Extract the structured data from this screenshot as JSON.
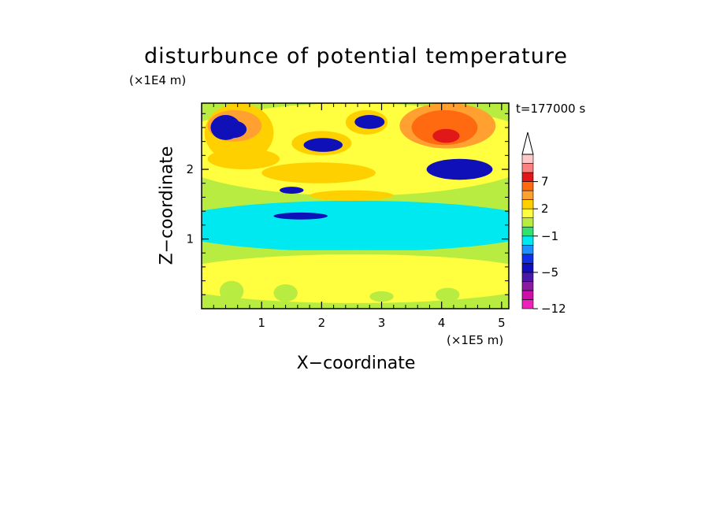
{
  "chart_data": {
    "type": "heatmap",
    "title": "disturbunce of potential temperature",
    "xlabel": "X−coordinate",
    "ylabel": "Z−coordinate",
    "x_unit": "(×1E5 m)",
    "y_unit": "(×1E4 m)",
    "annotation": "t=177000 s",
    "xlim": [
      0,
      5.12
    ],
    "ylim": [
      0,
      2.95
    ],
    "x_ticks": [
      1,
      2,
      3,
      4,
      5
    ],
    "x_tick_labels": [
      "1",
      "2",
      "3",
      "4",
      "5"
    ],
    "y_ticks": [
      1,
      2
    ],
    "y_tick_labels": [
      "1",
      "2"
    ],
    "colorbar": {
      "levels": [
        -12,
        -10,
        -8,
        -6,
        -5,
        -4,
        -3,
        -2,
        -1,
        0,
        1,
        2,
        3,
        5,
        7,
        8,
        10
      ],
      "tick_values": [
        -12,
        -5,
        -1,
        2,
        7
      ],
      "tick_labels": [
        "−12",
        "−5",
        "−1",
        "2",
        "7"
      ],
      "colors": [
        "#ee22bb",
        "#cc10a8",
        "#8a1aa0",
        "#4a18a8",
        "#1010b8",
        "#1030e8",
        "#1e90ff",
        "#00e8f0",
        "#34e070",
        "#b8ec40",
        "#ffff40",
        "#ffd000",
        "#ffa030",
        "#ff6a10",
        "#e01818",
        "#ff8080",
        "#ffc8c8"
      ],
      "extend": "max"
    },
    "regions": [
      {
        "x": [
          0,
          5.12
        ],
        "y": [
          0,
          2.95
        ],
        "value": 0.5
      },
      {
        "x": [
          0,
          5.12
        ],
        "y": [
          0.08,
          0.78
        ],
        "value": 1.5
      },
      {
        "x": [
          0,
          5.12
        ],
        "y": [
          1.62,
          2.95
        ],
        "value": 1.5
      },
      {
        "x": [
          0,
          5.12
        ],
        "y": [
          0.82,
          1.55
        ],
        "value": -1.5
      },
      {
        "x": [
          0,
          5.12
        ],
        "y": [
          0.98,
          1.4
        ],
        "value": -1.5
      },
      {
        "x": [
          0,
          5.12
        ],
        "y": [
          0.8,
          0.84
        ],
        "value": 0.5
      },
      {
        "x": [
          0.05,
          1.2
        ],
        "y": [
          2.1,
          2.95
        ],
        "value": 2.5
      },
      {
        "x": [
          0.1,
          1.0
        ],
        "y": [
          2.4,
          2.85
        ],
        "value": 4
      },
      {
        "x": [
          0.15,
          0.65
        ],
        "y": [
          2.42,
          2.78
        ],
        "value": -4.5
      },
      {
        "x": [
          0.3,
          0.75
        ],
        "y": [
          2.45,
          2.7
        ],
        "value": -4.5
      },
      {
        "x": [
          0.1,
          1.3
        ],
        "y": [
          2.0,
          2.3
        ],
        "value": 2.5
      },
      {
        "x": [
          1.5,
          2.5
        ],
        "y": [
          2.2,
          2.55
        ],
        "value": 2.5
      },
      {
        "x": [
          1.7,
          2.35
        ],
        "y": [
          2.25,
          2.45
        ],
        "value": -4.5
      },
      {
        "x": [
          2.4,
          3.1
        ],
        "y": [
          2.5,
          2.85
        ],
        "value": 2.5
      },
      {
        "x": [
          2.55,
          3.05
        ],
        "y": [
          2.58,
          2.78
        ],
        "value": -4.5
      },
      {
        "x": [
          3.3,
          4.9
        ],
        "y": [
          2.3,
          2.95
        ],
        "value": 4
      },
      {
        "x": [
          3.5,
          4.6
        ],
        "y": [
          2.35,
          2.85
        ],
        "value": 6
      },
      {
        "x": [
          3.85,
          4.3
        ],
        "y": [
          2.38,
          2.58
        ],
        "value": 7.5
      },
      {
        "x": [
          3.75,
          4.85
        ],
        "y": [
          1.85,
          2.15
        ],
        "value": -4.5
      },
      {
        "x": [
          1.0,
          2.9
        ],
        "y": [
          1.8,
          2.1
        ],
        "value": 2.5
      },
      {
        "x": [
          1.3,
          1.7
        ],
        "y": [
          1.65,
          1.75
        ],
        "value": -4.5
      },
      {
        "x": [
          1.2,
          2.1
        ],
        "y": [
          1.28,
          1.38
        ],
        "value": -4.5
      },
      {
        "x": [
          1.8,
          3.2
        ],
        "y": [
          1.55,
          1.7
        ],
        "value": 2.5
      },
      {
        "x": [
          0.3,
          0.7
        ],
        "y": [
          0.1,
          0.4
        ],
        "value": 0.5
      },
      {
        "x": [
          1.2,
          1.6
        ],
        "y": [
          0.1,
          0.35
        ],
        "value": 0.5
      },
      {
        "x": [
          2.8,
          3.2
        ],
        "y": [
          0.1,
          0.25
        ],
        "value": 0.5
      },
      {
        "x": [
          3.9,
          4.3
        ],
        "y": [
          0.1,
          0.3
        ],
        "value": 0.5
      }
    ]
  }
}
